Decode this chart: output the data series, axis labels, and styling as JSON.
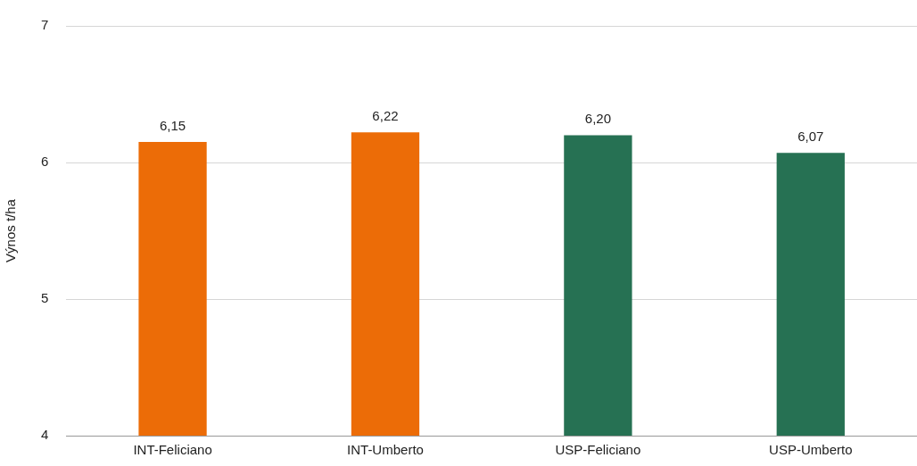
{
  "chart_data": {
    "type": "bar",
    "ylabel": "Výnos t/ha",
    "categories": [
      "INT-Feliciano",
      "INT-Umberto",
      "USP-Feliciano",
      "USP-Umberto"
    ],
    "values": [
      6.15,
      6.22,
      6.2,
      6.07
    ],
    "colors": [
      "#ec6c07",
      "#ec6c07",
      "#267153",
      "#267153"
    ],
    "value_labels": [
      "6,15",
      "6,22",
      "6,20",
      "6,07"
    ],
    "ylim": [
      4,
      7
    ],
    "yticks": [
      4,
      5,
      6,
      7
    ],
    "grid": "y",
    "legend": false
  }
}
